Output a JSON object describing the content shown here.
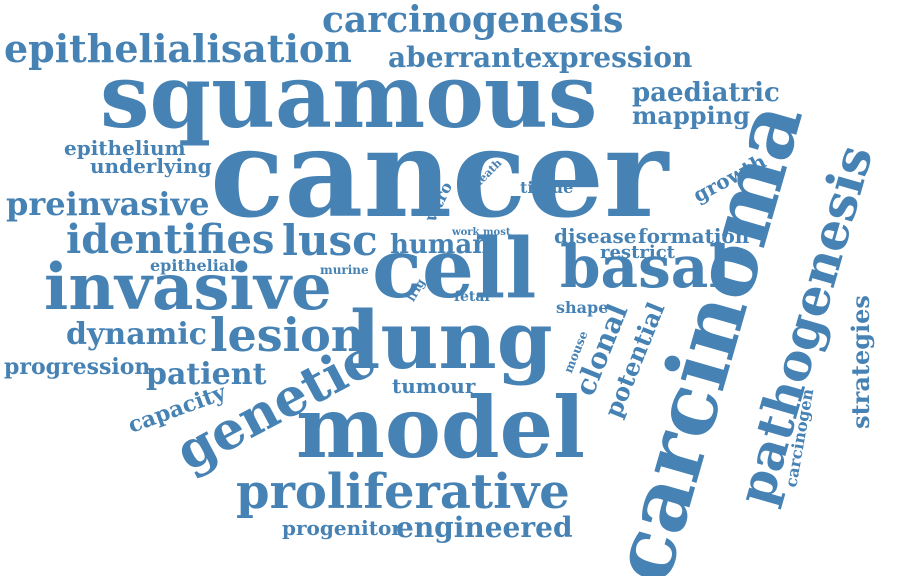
{
  "color": "#4682b4",
  "words": {
    "cancer": "cancer",
    "squamous": "squamous",
    "carcinoma": "carcinoma",
    "model": "model",
    "lung": "lung",
    "cell": "cell",
    "invasive": "invasive",
    "proliferative": "proliferative",
    "pathogenesis": "pathogenesis",
    "basal": "basal",
    "carcinogenesis": "carcinogenesis",
    "epithelialisation": "epithelialisation",
    "aberrantexpression": "aberrantexpression",
    "genetic": "genetic",
    "identifies": "identifies",
    "lusc": "lusc",
    "lesion": "lesion",
    "preinvasive": "preinvasive",
    "dynamic": "dynamic",
    "patient": "patient",
    "paediatric": "paediatric",
    "mapping": "mapping",
    "engineered": "engineered",
    "progenitor": "progenitor",
    "progression": "progression",
    "capacity": "capacity",
    "clonal": "clonal",
    "potential": "potential",
    "strategies": "strategies",
    "carcinogen": "carcinogen",
    "human": "human",
    "disease": "disease",
    "formation": "formation",
    "restrict": "restrict",
    "growth": "growth",
    "tissue": "tissue",
    "vitro": "vitro",
    "death": "death",
    "epithelium": "epithelium",
    "underlying": "underlying",
    "epithelial": "epithelial",
    "murine": "murine",
    "work_most": "work most",
    "lrig": "lrig",
    "fetal": "fetal",
    "shape": "shape",
    "mouse": "mouse",
    "tumour": "tumour"
  }
}
